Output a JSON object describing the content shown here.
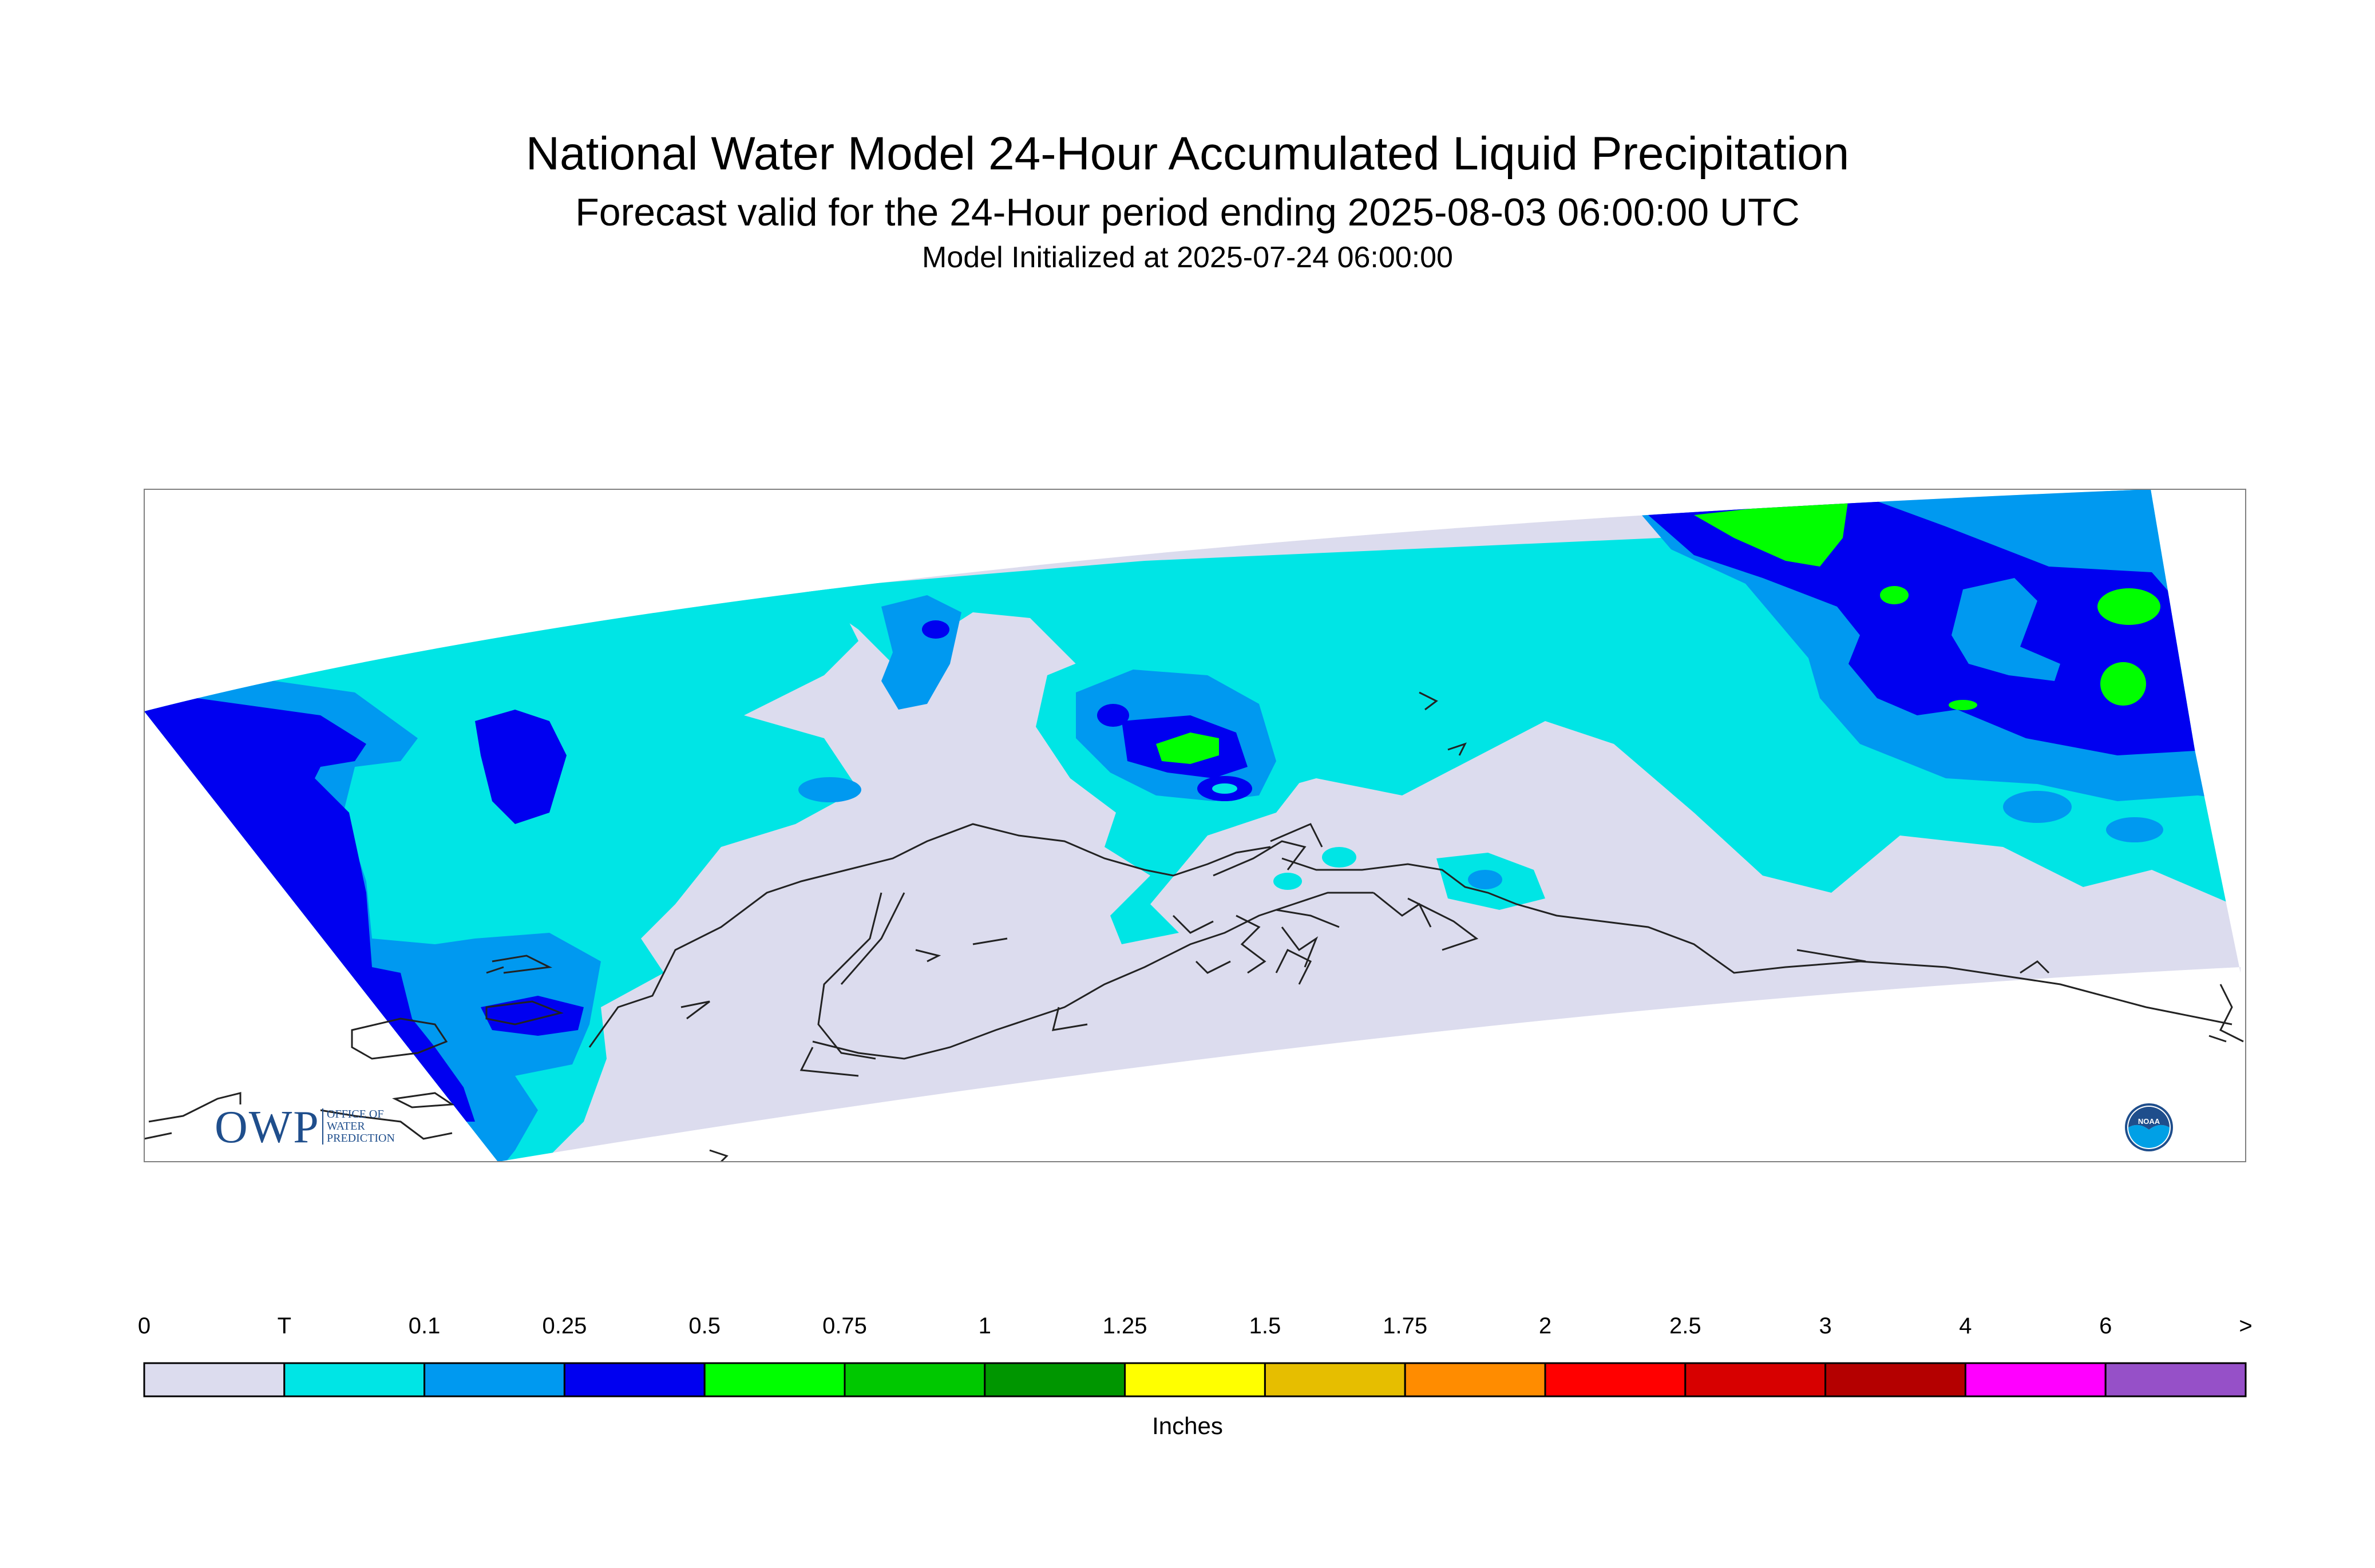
{
  "header": {
    "title": "National Water Model 24-Hour Accumulated Liquid Precipitation",
    "subtitle": "Forecast valid for the 24-Hour period ending 2025-08-03 06:00:00 UTC",
    "initialized": "Model Initialized at 2025-07-24 06:00:00"
  },
  "logos": {
    "owp_abbrev": "OWP",
    "owp_full_line1": "OFFICE OF",
    "owp_full_line2": "WATER",
    "owp_full_line3": "PREDICTION",
    "noaa": "NOAA"
  },
  "legend": {
    "unit": "Inches",
    "tick_labels": [
      "0",
      "T",
      "0.1",
      "0.25",
      "0.5",
      "0.75",
      "1",
      "1.25",
      "1.5",
      "1.75",
      "2",
      "2.5",
      "3",
      "4",
      "6",
      ">"
    ],
    "colors": [
      "#dcdcee",
      "#00e5e5",
      "#0099f0",
      "#0000f0",
      "#00ff00",
      "#00c800",
      "#009600",
      "#ffff00",
      "#e6be00",
      "#ff8c00",
      "#ff0000",
      "#d70000",
      "#b40000",
      "#ff00ff",
      "#9650c8"
    ]
  },
  "map": {
    "region": "Alaska",
    "colors": {
      "none": "#dcdcee",
      "trace": "#00e5e5",
      "tenth": "#0099f0",
      "quarter": "#0000f0",
      "half": "#00ff00",
      "frame": "#808080",
      "coast": "#222222"
    }
  }
}
